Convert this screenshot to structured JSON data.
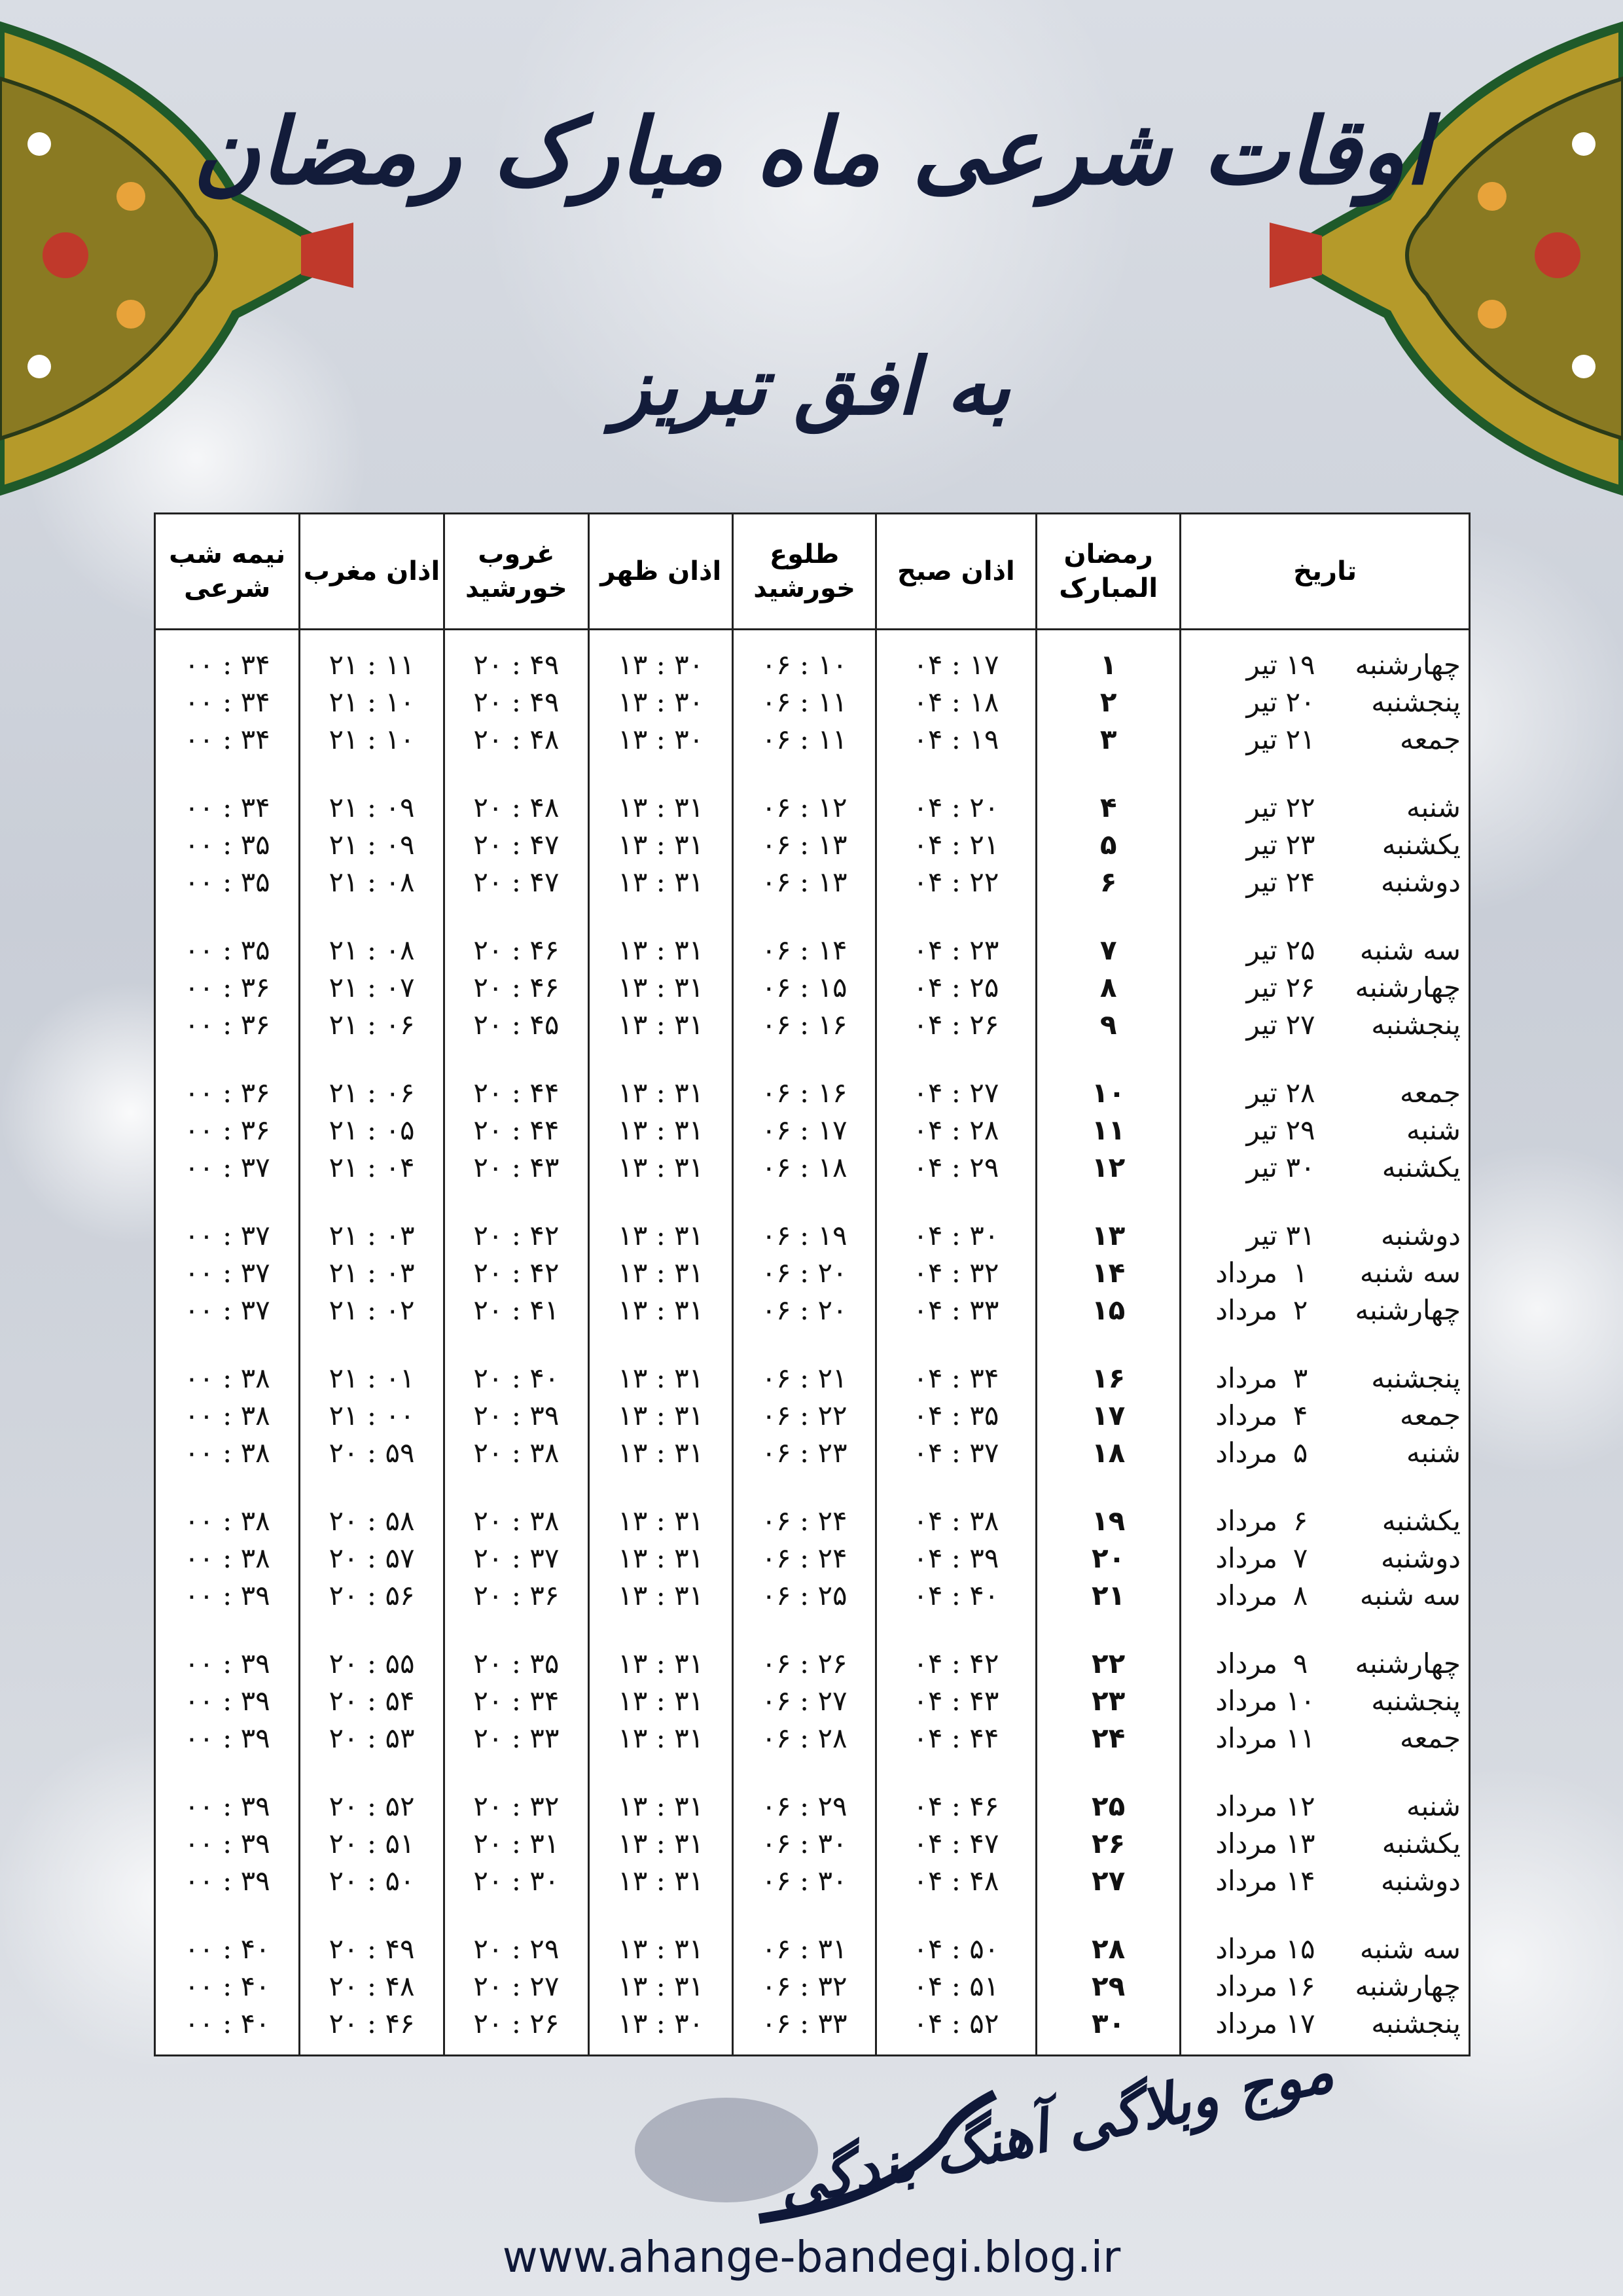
{
  "title": "اوقات شرعی ماه مبارک رمضان",
  "subtitle": "به افق تبریز",
  "colors": {
    "title": "#131c3a",
    "ornament_gold": "#b59a2a",
    "ornament_green": "#1f5a2a",
    "ornament_red": "#c0392b"
  },
  "headers": [
    "تاریخ",
    "رمضان المبارک",
    "اذان صبح",
    "طلوع خورشید",
    "اذان ظهر",
    "غروب خورشید",
    "اذان مغرب",
    "نیمه شب شرعی"
  ],
  "rows": [
    [
      "چهارشنبه",
      "۱۹",
      "تیر",
      "۱",
      "۰۴ : ۱۷",
      "۰۶ : ۱۰",
      "۱۳ : ۳۰",
      "۲۰ : ۴۹",
      "۲۱ : ۱۱",
      "۰۰ : ۳۴"
    ],
    [
      "پنجشنبه",
      "۲۰",
      "تیر",
      "۲",
      "۰۴ : ۱۸",
      "۰۶ : ۱۱",
      "۱۳ : ۳۰",
      "۲۰ : ۴۹",
      "۲۱ : ۱۰",
      "۰۰ : ۳۴"
    ],
    [
      "جمعه",
      "۲۱",
      "تیر",
      "۳",
      "۰۴ : ۱۹",
      "۰۶ : ۱۱",
      "۱۳ : ۳۰",
      "۲۰ : ۴۸",
      "۲۱ : ۱۰",
      "۰۰ : ۳۴"
    ],
    [
      "شنبه",
      "۲۲",
      "تیر",
      "۴",
      "۰۴ : ۲۰",
      "۰۶ : ۱۲",
      "۱۳ : ۳۱",
      "۲۰ : ۴۸",
      "۲۱ : ۰۹",
      "۰۰ : ۳۴"
    ],
    [
      "یکشنبه",
      "۲۳",
      "تیر",
      "۵",
      "۰۴ : ۲۱",
      "۰۶ : ۱۳",
      "۱۳ : ۳۱",
      "۲۰ : ۴۷",
      "۲۱ : ۰۹",
      "۰۰ : ۳۵"
    ],
    [
      "دوشنبه",
      "۲۴",
      "تیر",
      "۶",
      "۰۴ : ۲۲",
      "۰۶ : ۱۳",
      "۱۳ : ۳۱",
      "۲۰ : ۴۷",
      "۲۱ : ۰۸",
      "۰۰ : ۳۵"
    ],
    [
      "سه شنبه",
      "۲۵",
      "تیر",
      "۷",
      "۰۴ : ۲۳",
      "۰۶ : ۱۴",
      "۱۳ : ۳۱",
      "۲۰ : ۴۶",
      "۲۱ : ۰۸",
      "۰۰ : ۳۵"
    ],
    [
      "چهارشنبه",
      "۲۶",
      "تیر",
      "۸",
      "۰۴ : ۲۵",
      "۰۶ : ۱۵",
      "۱۳ : ۳۱",
      "۲۰ : ۴۶",
      "۲۱ : ۰۷",
      "۰۰ : ۳۶"
    ],
    [
      "پنجشنبه",
      "۲۷",
      "تیر",
      "۹",
      "۰۴ : ۲۶",
      "۰۶ : ۱۶",
      "۱۳ : ۳۱",
      "۲۰ : ۴۵",
      "۲۱ : ۰۶",
      "۰۰ : ۳۶"
    ],
    [
      "جمعه",
      "۲۸",
      "تیر",
      "۱۰",
      "۰۴ : ۲۷",
      "۰۶ : ۱۶",
      "۱۳ : ۳۱",
      "۲۰ : ۴۴",
      "۲۱ : ۰۶",
      "۰۰ : ۳۶"
    ],
    [
      "شنبه",
      "۲۹",
      "تیر",
      "۱۱",
      "۰۴ : ۲۸",
      "۰۶ : ۱۷",
      "۱۳ : ۳۱",
      "۲۰ : ۴۴",
      "۲۱ : ۰۵",
      "۰۰ : ۳۶"
    ],
    [
      "یکشنبه",
      "۳۰",
      "تیر",
      "۱۲",
      "۰۴ : ۲۹",
      "۰۶ : ۱۸",
      "۱۳ : ۳۱",
      "۲۰ : ۴۳",
      "۲۱ : ۰۴",
      "۰۰ : ۳۷"
    ],
    [
      "دوشنبه",
      "۳۱",
      "تیر",
      "۱۳",
      "۰۴ : ۳۰",
      "۰۶ : ۱۹",
      "۱۳ : ۳۱",
      "۲۰ : ۴۲",
      "۲۱ : ۰۳",
      "۰۰ : ۳۷"
    ],
    [
      "سه شنبه",
      "۱",
      "مرداد",
      "۱۴",
      "۰۴ : ۳۲",
      "۰۶ : ۲۰",
      "۱۳ : ۳۱",
      "۲۰ : ۴۲",
      "۲۱ : ۰۳",
      "۰۰ : ۳۷"
    ],
    [
      "چهارشنبه",
      "۲",
      "مرداد",
      "۱۵",
      "۰۴ : ۳۳",
      "۰۶ : ۲۰",
      "۱۳ : ۳۱",
      "۲۰ : ۴۱",
      "۲۱ : ۰۲",
      "۰۰ : ۳۷"
    ],
    [
      "پنجشنبه",
      "۳",
      "مرداد",
      "۱۶",
      "۰۴ : ۳۴",
      "۰۶ : ۲۱",
      "۱۳ : ۳۱",
      "۲۰ : ۴۰",
      "۲۱ : ۰۱",
      "۰۰ : ۳۸"
    ],
    [
      "جمعه",
      "۴",
      "مرداد",
      "۱۷",
      "۰۴ : ۳۵",
      "۰۶ : ۲۲",
      "۱۳ : ۳۱",
      "۲۰ : ۳۹",
      "۲۱ : ۰۰",
      "۰۰ : ۳۸"
    ],
    [
      "شنبه",
      "۵",
      "مرداد",
      "۱۸",
      "۰۴ : ۳۷",
      "۰۶ : ۲۳",
      "۱۳ : ۳۱",
      "۲۰ : ۳۸",
      "۲۰ : ۵۹",
      "۰۰ : ۳۸"
    ],
    [
      "یکشنبه",
      "۶",
      "مرداد",
      "۱۹",
      "۰۴ : ۳۸",
      "۰۶ : ۲۴",
      "۱۳ : ۳۱",
      "۲۰ : ۳۸",
      "۲۰ : ۵۸",
      "۰۰ : ۳۸"
    ],
    [
      "دوشنبه",
      "۷",
      "مرداد",
      "۲۰",
      "۰۴ : ۳۹",
      "۰۶ : ۲۴",
      "۱۳ : ۳۱",
      "۲۰ : ۳۷",
      "۲۰ : ۵۷",
      "۰۰ : ۳۸"
    ],
    [
      "سه شنبه",
      "۸",
      "مرداد",
      "۲۱",
      "۰۴ : ۴۰",
      "۰۶ : ۲۵",
      "۱۳ : ۳۱",
      "۲۰ : ۳۶",
      "۲۰ : ۵۶",
      "۰۰ : ۳۹"
    ],
    [
      "چهارشنبه",
      "۹",
      "مرداد",
      "۲۲",
      "۰۴ : ۴۲",
      "۰۶ : ۲۶",
      "۱۳ : ۳۱",
      "۲۰ : ۳۵",
      "۲۰ : ۵۵",
      "۰۰ : ۳۹"
    ],
    [
      "پنجشنبه",
      "۱۰",
      "مرداد",
      "۲۳",
      "۰۴ : ۴۳",
      "۰۶ : ۲۷",
      "۱۳ : ۳۱",
      "۲۰ : ۳۴",
      "۲۰ : ۵۴",
      "۰۰ : ۳۹"
    ],
    [
      "جمعه",
      "۱۱",
      "مرداد",
      "۲۴",
      "۰۴ : ۴۴",
      "۰۶ : ۲۸",
      "۱۳ : ۳۱",
      "۲۰ : ۳۳",
      "۲۰ : ۵۳",
      "۰۰ : ۳۹"
    ],
    [
      "شنبه",
      "۱۲",
      "مرداد",
      "۲۵",
      "۰۴ : ۴۶",
      "۰۶ : ۲۹",
      "۱۳ : ۳۱",
      "۲۰ : ۳۲",
      "۲۰ : ۵۲",
      "۰۰ : ۳۹"
    ],
    [
      "یکشنبه",
      "۱۳",
      "مرداد",
      "۲۶",
      "۰۴ : ۴۷",
      "۰۶ : ۳۰",
      "۱۳ : ۳۱",
      "۲۰ : ۳۱",
      "۲۰ : ۵۱",
      "۰۰ : ۳۹"
    ],
    [
      "دوشنبه",
      "۱۴",
      "مرداد",
      "۲۷",
      "۰۴ : ۴۸",
      "۰۶ : ۳۰",
      "۱۳ : ۳۱",
      "۲۰ : ۳۰",
      "۲۰ : ۵۰",
      "۰۰ : ۳۹"
    ],
    [
      "سه شنبه",
      "۱۵",
      "مرداد",
      "۲۸",
      "۰۴ : ۵۰",
      "۰۶ : ۳۱",
      "۱۳ : ۳۱",
      "۲۰ : ۲۹",
      "۲۰ : ۴۹",
      "۰۰ : ۴۰"
    ],
    [
      "چهارشنبه",
      "۱۶",
      "مرداد",
      "۲۹",
      "۰۴ : ۵۱",
      "۰۶ : ۳۲",
      "۱۳ : ۳۱",
      "۲۰ : ۲۷",
      "۲۰ : ۴۸",
      "۰۰ : ۴۰"
    ],
    [
      "پنجشنبه",
      "۱۷",
      "مرداد",
      "۳۰",
      "۰۴ : ۵۲",
      "۰۶ : ۳۳",
      "۱۳ : ۳۰",
      "۲۰ : ۲۶",
      "۲۰ : ۴۶",
      "۰۰ : ۴۰"
    ]
  ],
  "footer": {
    "logo_text": "موج وبلاگی آهنگ بندگی",
    "url": "www.ahange-bandegi.blog.ir"
  }
}
